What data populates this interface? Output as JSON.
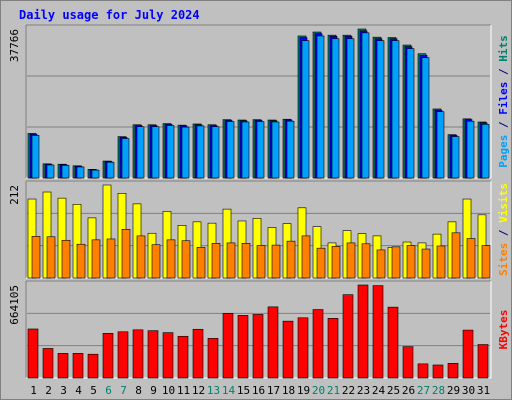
{
  "chart_data": {
    "type": "bar",
    "title": "Daily usage for July 2024",
    "categories": [
      "1",
      "2",
      "3",
      "4",
      "5",
      "6",
      "7",
      "8",
      "9",
      "10",
      "11",
      "12",
      "13",
      "14",
      "15",
      "16",
      "17",
      "18",
      "19",
      "20",
      "21",
      "22",
      "23",
      "24",
      "25",
      "26",
      "27",
      "28",
      "29",
      "30",
      "31"
    ],
    "weekend_categories": [
      "6",
      "7",
      "13",
      "14",
      "20",
      "21",
      "27",
      "28"
    ],
    "panels": [
      {
        "name": "pages-files-hits",
        "max_label": "37766",
        "ylim": [
          0,
          37766
        ],
        "right_label_parts": [
          {
            "text": "Pages",
            "color": "#00a0ff"
          },
          {
            "text": " / ",
            "color": "#000080"
          },
          {
            "text": "Files",
            "color": "#0000ff"
          },
          {
            "text": " / ",
            "color": "#000080"
          },
          {
            "text": "Hits",
            "color": "#00806e"
          }
        ],
        "series": [
          {
            "name": "Hits",
            "color": "#00806e",
            "values": [
              11300,
              3600,
              3500,
              3100,
              2200,
              4300,
              10500,
              13500,
              13500,
              13800,
              13400,
              13700,
              13500,
              14800,
              14700,
              14800,
              14700,
              14900,
              36000,
              37000,
              36200,
              36200,
              37766,
              35700,
              35600,
              33700,
              31500,
              17500,
              11000,
              15000,
              14200
            ]
          },
          {
            "name": "Files",
            "color": "#0000ff",
            "values": [
              11100,
              3500,
              3400,
              3000,
              2100,
              4200,
              10300,
              13300,
              13300,
              13600,
              13200,
              13500,
              13300,
              14600,
              14500,
              14600,
              14500,
              14700,
              35600,
              36600,
              35900,
              35900,
              37300,
              35300,
              35300,
              33300,
              31100,
              17200,
              10800,
              14800,
              14000
            ]
          },
          {
            "name": "Pages",
            "color": "#00a0ff",
            "values": [
              10800,
              3300,
              3200,
              2800,
              2000,
              4000,
              10000,
              13000,
              13000,
              13300,
              12900,
              13200,
              13000,
              14300,
              14200,
              14300,
              14200,
              14400,
              34800,
              36000,
              35300,
              35300,
              36800,
              34800,
              34800,
              32800,
              30500,
              16800,
              10500,
              14400,
              13600
            ]
          }
        ]
      },
      {
        "name": "sites-visits",
        "max_label": "212",
        "ylim": [
          0,
          212
        ],
        "right_label_parts": [
          {
            "text": "Sites",
            "color": "#ff8000"
          },
          {
            "text": " / ",
            "color": "#000080"
          },
          {
            "text": "Visits",
            "color": "#ffff00"
          }
        ],
        "series": [
          {
            "name": "Visits",
            "color": "#ffff00",
            "values": [
              180,
              196,
              182,
              168,
              137,
              212,
              193,
              169,
              102,
              152,
              120,
              128,
              125,
              157,
              130,
              136,
              115,
              124,
              160,
              117,
              80,
              108,
              101,
              96,
              70,
              82,
              80,
              100,
              128,
              180,
              144
            ]
          },
          {
            "name": "Sites",
            "color": "#ff8000",
            "values": [
              95,
              94,
              86,
              77,
              87,
              89,
              111,
              96,
              76,
              87,
              85,
              70,
              79,
              80,
              79,
              74,
              75,
              84,
              96,
              68,
              72,
              80,
              78,
              64,
              71,
              74,
              66,
              73,
              103,
              90,
              74
            ]
          }
        ]
      },
      {
        "name": "kbytes",
        "max_label": "664105",
        "ylim": [
          0,
          664105
        ],
        "right_label_parts": [
          {
            "text": "KBytes",
            "color": "#ff0000"
          }
        ],
        "series": [
          {
            "name": "KBytes",
            "color": "#ff0000",
            "values": [
              350000,
              211000,
              176000,
              176000,
              170000,
              319000,
              330000,
              344000,
              338000,
              324000,
              298000,
              348000,
              283000,
              462000,
              447000,
              454000,
              508000,
              406000,
              430000,
              489000,
              426000,
              595000,
              664105,
              660000,
              506000,
              224000,
              101000,
              93000,
              105000,
              342000,
              239000
            ]
          }
        ]
      }
    ]
  }
}
